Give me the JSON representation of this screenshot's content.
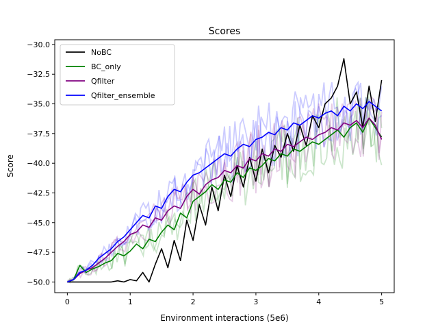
{
  "chart_data": {
    "type": "line",
    "title": "Scores",
    "xlabel": "Environment interactions (5e6)",
    "ylabel": "Score",
    "xlim": [
      -0.2,
      5.2
    ],
    "ylim": [
      -50.9,
      -29.6
    ],
    "xticks": [
      0,
      1,
      2,
      3,
      4,
      5
    ],
    "xtick_labels": [
      "0",
      "1",
      "2",
      "3",
      "4",
      "5"
    ],
    "yticks": [
      -50.0,
      -47.5,
      -45.0,
      -42.5,
      -40.0,
      -37.5,
      -35.0,
      -32.5,
      -30.0
    ],
    "ytick_labels": [
      "−50.0",
      "−47.5",
      "−45.0",
      "−42.5",
      "−40.0",
      "−37.5",
      "−35.0",
      "−32.5",
      "−30.0"
    ],
    "grid": false,
    "legend_position": "upper-left",
    "series": [
      {
        "name": "NoBC",
        "color": "#000000",
        "x": [
          0,
          0.25,
          0.5,
          0.7,
          0.8,
          0.9,
          1.0,
          1.1,
          1.2,
          1.3,
          1.4,
          1.5,
          1.6,
          1.7,
          1.8,
          1.9,
          2.0,
          2.1,
          2.2,
          2.3,
          2.4,
          2.5,
          2.6,
          2.7,
          2.8,
          2.9,
          3.0,
          3.1,
          3.2,
          3.3,
          3.4,
          3.5,
          3.6,
          3.7,
          3.8,
          3.9,
          4.0,
          4.1,
          4.2,
          4.3,
          4.4,
          4.5,
          4.6,
          4.7,
          4.8,
          4.9,
          5.0
        ],
        "y": [
          -50.0,
          -50.0,
          -50.0,
          -50.0,
          -49.9,
          -50.0,
          -49.8,
          -49.9,
          -49.2,
          -50.0,
          -48.5,
          -47.2,
          -48.8,
          -46.5,
          -48.2,
          -44.8,
          -46.5,
          -43.5,
          -45.2,
          -42.0,
          -44.0,
          -41.0,
          -42.8,
          -40.2,
          -42.0,
          -39.5,
          -41.5,
          -38.8,
          -40.8,
          -38.5,
          -39.5,
          -37.5,
          -39.0,
          -36.8,
          -38.5,
          -36.0,
          -37.0,
          -35.0,
          -34.5,
          -33.5,
          -31.2,
          -35.0,
          -34.0,
          -37.0,
          -33.5,
          -36.5,
          -33.0
        ]
      },
      {
        "name": "BC_only",
        "color": "#008000",
        "x": [
          0,
          0.1,
          0.2,
          0.3,
          0.4,
          0.5,
          0.6,
          0.7,
          0.8,
          0.9,
          1.0,
          1.1,
          1.2,
          1.3,
          1.4,
          1.5,
          1.6,
          1.7,
          1.8,
          1.9,
          2.0,
          2.1,
          2.2,
          2.3,
          2.4,
          2.5,
          2.6,
          2.7,
          2.8,
          2.9,
          3.0,
          3.1,
          3.2,
          3.3,
          3.4,
          3.5,
          3.6,
          3.7,
          3.8,
          3.9,
          4.0,
          4.1,
          4.2,
          4.3,
          4.4,
          4.5,
          4.6,
          4.7,
          4.8,
          4.9,
          5.0
        ],
        "y": [
          -50.0,
          -49.8,
          -48.6,
          -49.2,
          -48.9,
          -48.7,
          -48.4,
          -48.2,
          -47.6,
          -47.8,
          -47.4,
          -46.8,
          -47.2,
          -46.4,
          -46.6,
          -45.8,
          -45.2,
          -45.6,
          -44.2,
          -44.6,
          -43.2,
          -42.8,
          -42.4,
          -41.8,
          -42.2,
          -41.4,
          -41.6,
          -40.8,
          -41.2,
          -40.4,
          -40.6,
          -40.2,
          -39.6,
          -39.8,
          -39.2,
          -39.4,
          -38.8,
          -39.0,
          -38.6,
          -38.2,
          -38.4,
          -38.0,
          -37.6,
          -37.2,
          -37.8,
          -37.0,
          -36.6,
          -37.4,
          -36.2,
          -37.0,
          -37.8
        ]
      },
      {
        "name": "Qfilter",
        "color": "#800080",
        "x": [
          0,
          0.1,
          0.2,
          0.3,
          0.4,
          0.5,
          0.6,
          0.7,
          0.8,
          0.9,
          1.0,
          1.1,
          1.2,
          1.3,
          1.4,
          1.5,
          1.6,
          1.7,
          1.8,
          1.9,
          2.0,
          2.1,
          2.2,
          2.3,
          2.4,
          2.5,
          2.6,
          2.7,
          2.8,
          2.9,
          3.0,
          3.1,
          3.2,
          3.3,
          3.4,
          3.5,
          3.6,
          3.7,
          3.8,
          3.9,
          4.0,
          4.1,
          4.2,
          4.3,
          4.4,
          4.5,
          4.6,
          4.7,
          4.8,
          4.9,
          5.0
        ],
        "y": [
          -50.0,
          -49.8,
          -49.3,
          -49.0,
          -48.8,
          -48.4,
          -48.0,
          -47.5,
          -47.0,
          -46.6,
          -46.0,
          -45.8,
          -45.2,
          -45.4,
          -44.6,
          -44.8,
          -44.0,
          -43.6,
          -43.8,
          -42.8,
          -42.2,
          -42.6,
          -41.8,
          -41.4,
          -41.2,
          -40.6,
          -40.8,
          -40.2,
          -40.4,
          -39.6,
          -39.8,
          -39.2,
          -39.4,
          -38.8,
          -39.0,
          -38.4,
          -38.6,
          -38.2,
          -37.8,
          -38.0,
          -37.6,
          -37.4,
          -37.0,
          -37.2,
          -36.6,
          -36.8,
          -36.4,
          -37.0,
          -36.2,
          -36.8,
          -38.0
        ]
      },
      {
        "name": "Qfilter_ensemble",
        "color": "#0000ff",
        "x": [
          0,
          0.1,
          0.2,
          0.3,
          0.4,
          0.5,
          0.6,
          0.7,
          0.8,
          0.9,
          1.0,
          1.1,
          1.2,
          1.3,
          1.4,
          1.5,
          1.6,
          1.7,
          1.8,
          1.9,
          2.0,
          2.1,
          2.2,
          2.3,
          2.4,
          2.5,
          2.6,
          2.7,
          2.8,
          2.9,
          3.0,
          3.1,
          3.2,
          3.3,
          3.4,
          3.5,
          3.6,
          3.7,
          3.8,
          3.9,
          4.0,
          4.1,
          4.2,
          4.3,
          4.4,
          4.5,
          4.6,
          4.7,
          4.8,
          4.9,
          5.0
        ],
        "y": [
          -50.0,
          -49.8,
          -49.2,
          -49.0,
          -48.6,
          -48.0,
          -47.6,
          -47.2,
          -46.6,
          -46.2,
          -45.6,
          -45.0,
          -44.4,
          -44.6,
          -43.6,
          -43.8,
          -42.8,
          -42.2,
          -42.4,
          -41.6,
          -41.0,
          -40.8,
          -40.4,
          -40.0,
          -39.6,
          -39.2,
          -39.4,
          -38.8,
          -38.4,
          -38.6,
          -38.0,
          -37.8,
          -37.4,
          -37.6,
          -37.0,
          -37.2,
          -36.6,
          -36.8,
          -36.4,
          -36.0,
          -36.2,
          -35.8,
          -35.6,
          -36.0,
          -35.2,
          -35.6,
          -35.0,
          -35.4,
          -34.8,
          -35.2,
          -35.6
        ]
      }
    ]
  }
}
